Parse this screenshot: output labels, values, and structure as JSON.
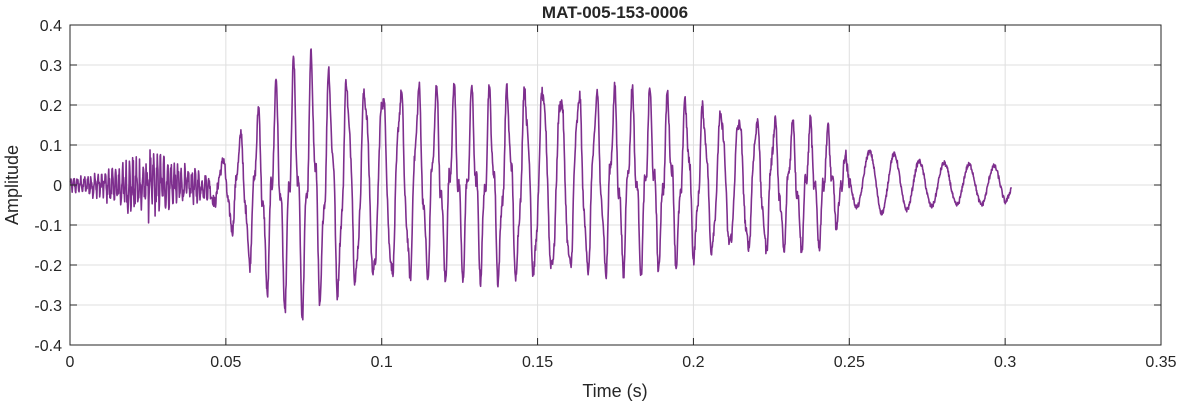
{
  "chart_data": {
    "type": "line",
    "title": "MAT-005-153-0006",
    "xlabel": "Time (s)",
    "ylabel": "Amplitude",
    "xlim": [
      0,
      0.35
    ],
    "ylim": [
      -0.4,
      0.4
    ],
    "grid": true,
    "xticks": [
      0,
      0.05,
      0.1,
      0.15,
      0.2,
      0.25,
      0.3,
      0.35
    ],
    "xtick_labels": [
      "0",
      "0.05",
      "0.1",
      "0.15",
      "0.2",
      "0.25",
      "0.3",
      "0.35"
    ],
    "yticks": [
      -0.4,
      -0.3,
      -0.2,
      -0.1,
      0,
      0.1,
      0.2,
      0.3,
      0.4
    ],
    "ytick_labels": [
      "-0.4",
      "-0.3",
      "-0.2",
      "-0.1",
      "0",
      "0.1",
      "0.2",
      "0.3",
      "0.4"
    ],
    "series": [
      {
        "color": "#7E2F8E",
        "x_start": 0,
        "x_end": 0.302,
        "envelope": {
          "t": [
            0,
            0.01,
            0.02,
            0.025,
            0.03,
            0.035,
            0.045,
            0.05,
            0.055,
            0.06,
            0.065,
            0.07,
            0.075,
            0.08,
            0.09,
            0.1,
            0.11,
            0.12,
            0.13,
            0.14,
            0.15,
            0.16,
            0.17,
            0.18,
            0.19,
            0.2,
            0.21,
            0.22,
            0.23,
            0.24,
            0.245,
            0.25,
            0.255,
            0.26,
            0.27,
            0.28,
            0.29,
            0.3,
            0.302
          ],
          "upper": [
            0.02,
            0.04,
            0.08,
            0.1,
            0.09,
            0.06,
            0.03,
            0.09,
            0.15,
            0.2,
            0.26,
            0.3,
            0.35,
            0.32,
            0.3,
            0.29,
            0.28,
            0.26,
            0.25,
            0.26,
            0.3,
            0.28,
            0.26,
            0.25,
            0.24,
            0.23,
            0.22,
            0.2,
            0.18,
            0.16,
            0.14,
            0.06,
            0.08,
            0.09,
            0.06,
            0.055,
            0.05,
            0.045,
            0.02
          ],
          "lower": [
            -0.02,
            -0.04,
            -0.09,
            -0.1,
            -0.08,
            -0.06,
            -0.04,
            -0.1,
            -0.18,
            -0.25,
            -0.3,
            -0.33,
            -0.34,
            -0.32,
            -0.3,
            -0.29,
            -0.27,
            -0.25,
            -0.24,
            -0.26,
            -0.28,
            -0.27,
            -0.25,
            -0.23,
            -0.22,
            -0.21,
            -0.2,
            -0.2,
            -0.18,
            -0.16,
            -0.13,
            -0.06,
            -0.05,
            -0.07,
            -0.06,
            -0.05,
            -0.05,
            -0.045,
            -0.02
          ]
        }
      }
    ]
  }
}
